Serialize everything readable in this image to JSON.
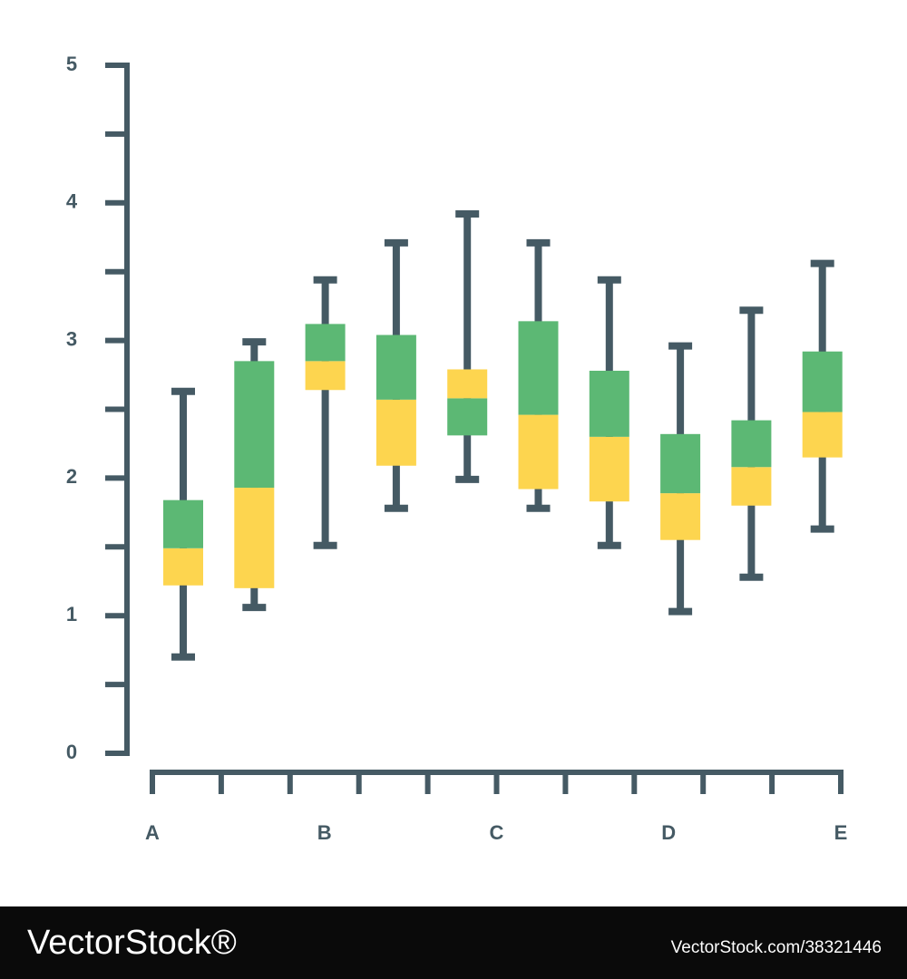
{
  "chart_data": {
    "type": "box",
    "ylim": [
      0,
      5
    ],
    "yticks": [
      0,
      1,
      2,
      3,
      4,
      5
    ],
    "yminorticks": [
      0.5,
      1.5,
      2.5,
      3.5,
      4.5
    ],
    "xlim": [
      0,
      10
    ],
    "xticks": [
      {
        "value": 0,
        "label": "A"
      },
      {
        "value": 2.5,
        "label": "B"
      },
      {
        "value": 5,
        "label": "C"
      },
      {
        "value": 7.5,
        "label": "D"
      },
      {
        "value": 10,
        "label": "E"
      }
    ],
    "xminorticks": [
      1,
      2,
      3,
      4,
      5,
      6,
      7,
      8,
      9
    ],
    "axis_color": "#455a64",
    "boxes": [
      {
        "low": 0.7,
        "q1": 1.22,
        "median": 1.49,
        "q3": 1.84,
        "high": 2.63,
        "lower_color": "#fdd54f",
        "upper_color": "#5cb874"
      },
      {
        "low": 1.06,
        "q1": 1.2,
        "median": 1.93,
        "q3": 2.85,
        "high": 2.99,
        "lower_color": "#fdd54f",
        "upper_color": "#5cb874"
      },
      {
        "low": 1.51,
        "q1": 2.64,
        "median": 2.85,
        "q3": 3.12,
        "high": 3.44,
        "lower_color": "#fdd54f",
        "upper_color": "#5cb874"
      },
      {
        "low": 1.78,
        "q1": 2.09,
        "median": 2.57,
        "q3": 3.04,
        "high": 3.71,
        "lower_color": "#fdd54f",
        "upper_color": "#5cb874"
      },
      {
        "low": 1.99,
        "q1": 2.31,
        "median": 2.58,
        "q3": 2.79,
        "high": 3.92,
        "lower_color": "#5cb874",
        "upper_color": "#fdd54f"
      },
      {
        "low": 1.78,
        "q1": 1.92,
        "median": 2.46,
        "q3": 3.14,
        "high": 3.71,
        "lower_color": "#fdd54f",
        "upper_color": "#5cb874"
      },
      {
        "low": 1.51,
        "q1": 1.83,
        "median": 2.3,
        "q3": 2.78,
        "high": 3.44,
        "lower_color": "#fdd54f",
        "upper_color": "#5cb874"
      },
      {
        "low": 1.03,
        "q1": 1.55,
        "median": 1.89,
        "q3": 2.32,
        "high": 2.96,
        "lower_color": "#fdd54f",
        "upper_color": "#5cb874"
      },
      {
        "low": 1.28,
        "q1": 1.8,
        "median": 2.08,
        "q3": 2.42,
        "high": 3.22,
        "lower_color": "#fdd54f",
        "upper_color": "#5cb874"
      },
      {
        "low": 1.63,
        "q1": 2.15,
        "median": 2.48,
        "q3": 2.92,
        "high": 3.56,
        "lower_color": "#fdd54f",
        "upper_color": "#5cb874"
      }
    ]
  },
  "watermark": {
    "brand": "VectorStock®",
    "id": "VectorStock.com/38321446"
  }
}
